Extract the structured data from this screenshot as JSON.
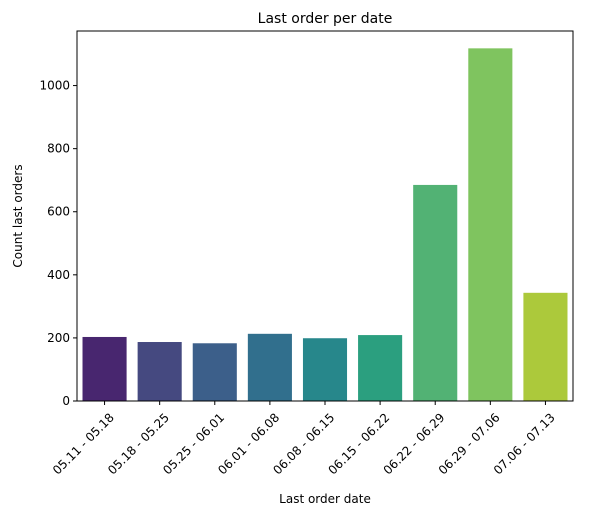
{
  "chart_data": {
    "type": "bar",
    "title": "Last order per date",
    "xlabel": "Last order date",
    "ylabel": "Count last orders",
    "categories": [
      "05.11 - 05.18",
      "05.18 - 05.25",
      "05.25 - 06.01",
      "06.01 - 06.08",
      "06.08 - 06.15",
      "06.15 - 06.22",
      "06.22 - 06.29",
      "06.29 - 07.06",
      "07.06 - 07.13"
    ],
    "values": [
      203,
      187,
      183,
      213,
      199,
      209,
      685,
      1118,
      343
    ],
    "colors": [
      "#48266f",
      "#454980",
      "#3c5f8a",
      "#316f8d",
      "#27878b",
      "#2b9f7f",
      "#52b274",
      "#7fc45f",
      "#acc93b"
    ],
    "ylim": [
      0,
      1173
    ],
    "yticks": [
      0,
      200,
      400,
      600,
      800,
      1000
    ],
    "grid": false,
    "legend": "none"
  }
}
